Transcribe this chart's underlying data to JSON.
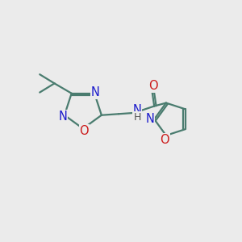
{
  "bg_color": "#ebebeb",
  "bond_color": "#4a7c6f",
  "N_color": "#1a1acc",
  "O_color": "#cc1a1a",
  "line_width": 1.6,
  "font_size_atom": 10.5,
  "fig_size": [
    3.0,
    3.0
  ],
  "dpi": 100,
  "xlim": [
    0,
    10
  ],
  "ylim": [
    0,
    10
  ]
}
